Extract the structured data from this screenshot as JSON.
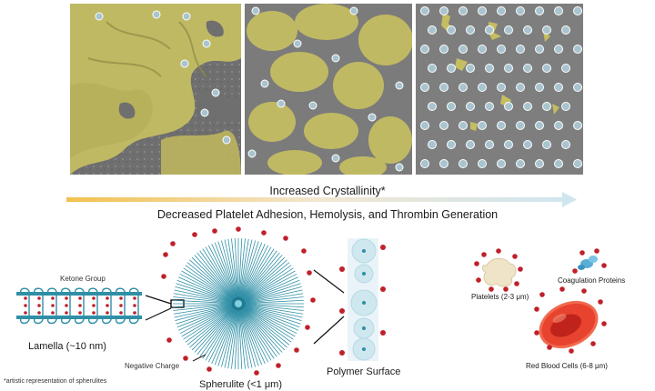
{
  "arrow": {
    "label": "Increased Crystallinity*",
    "color_start": "#f2c14e",
    "color_end": "#cfe6f0"
  },
  "subtitle": "Decreased Platelet Adhesion, Hemolysis, and Thrombin Generation",
  "labels": {
    "ketone_group": "Ketone Group",
    "lamella": "Lamella (~10 nm)",
    "negative_charge": "Negative Charge",
    "spherulite": "Spherulite (<1 μm)",
    "polymer_surface": "Polymer Surface",
    "platelets": "Platelets (2-3 μm)",
    "coagulation_proteins": "Coagulation Proteins",
    "red_blood_cells": "Red Blood Cells (6-8 μm)",
    "footnote": "*artistic representation of spherulites"
  },
  "colors": {
    "platelet_overlay": "#c9c26a",
    "surface_gray": "#7a7a7a",
    "teal": "#2f8fa6",
    "charge_red": "#c0202a",
    "rbc_red": "#e8432f"
  }
}
